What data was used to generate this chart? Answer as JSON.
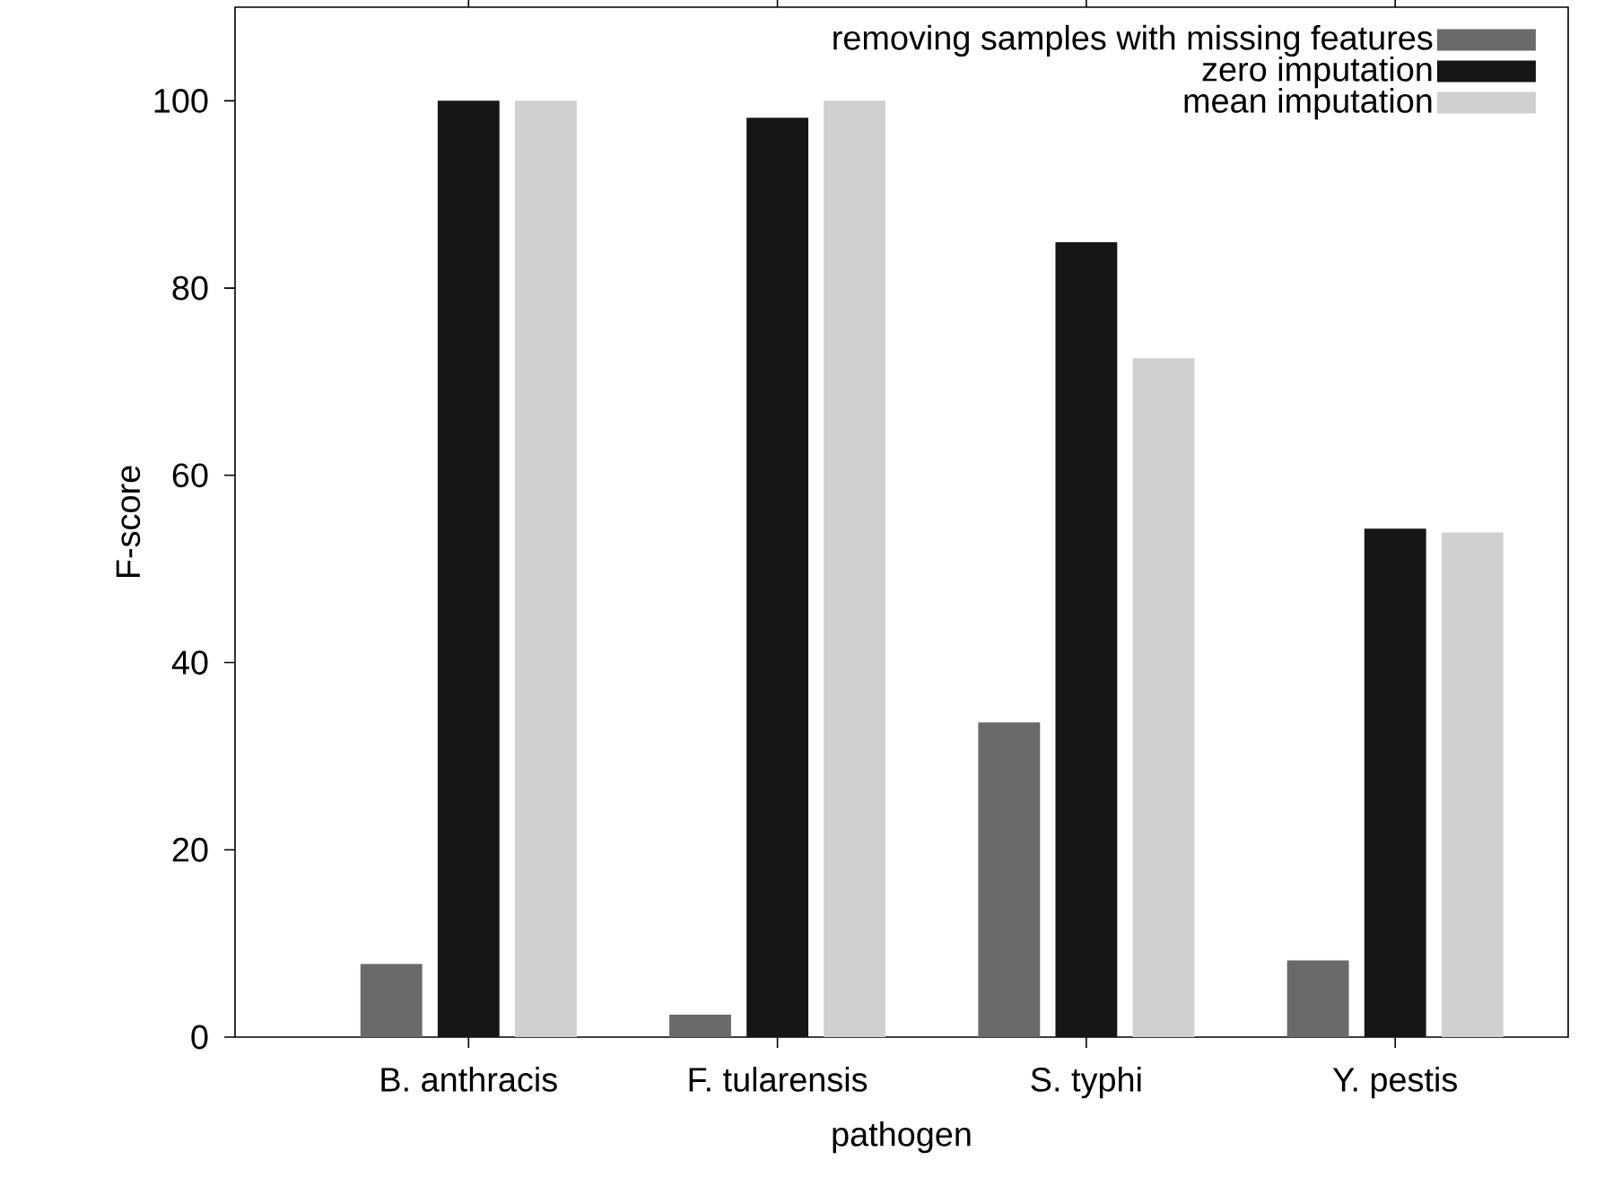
{
  "chart_data": {
    "type": "bar",
    "xlabel": "pathogen",
    "ylabel": "F-score",
    "categories": [
      "B. anthracis",
      "F. tularensis",
      "S. typhi",
      "Y. pestis"
    ],
    "series": [
      {
        "name": "removing samples with missing features",
        "color": "#6a6a6a",
        "values": [
          7.8,
          2.4,
          33.6,
          8.2
        ]
      },
      {
        "name": "zero imputation",
        "color": "#161616",
        "values": [
          100,
          98.2,
          84.9,
          54.3
        ]
      },
      {
        "name": "mean imputation",
        "color": "#d0d0d0",
        "values": [
          100,
          100,
          72.5,
          53.9
        ]
      }
    ],
    "ylim": [
      0,
      110
    ],
    "yticks": [
      0,
      20,
      40,
      60,
      80,
      100
    ],
    "grid": false,
    "legend": "top right"
  }
}
